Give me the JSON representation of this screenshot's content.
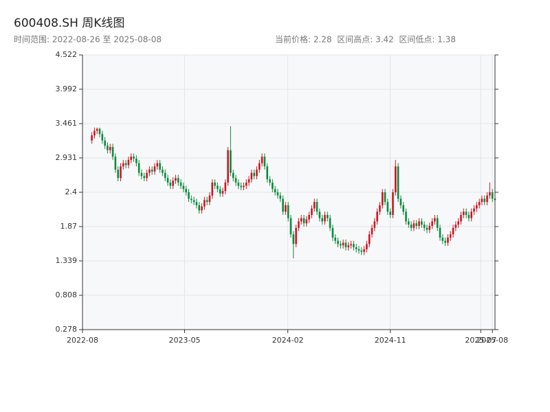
{
  "chart_data": {
    "type": "candlestick",
    "title": "600408.SH 周K线图",
    "subtitle": "时间范围: 2022-08-26 至 2025-08-08",
    "stats": "当前价格: 2.28  区间高点: 3.42  区间低点: 1.38",
    "up_color": "#d0131f",
    "down_color": "#0a8a3a",
    "x": [
      "2022-08-26",
      "2022-09-02",
      "2022-09-09",
      "2022-09-16",
      "2022-09-23",
      "2022-09-30",
      "2022-10-07",
      "2022-10-14",
      "2022-10-21",
      "2022-10-28",
      "2022-11-04",
      "2022-11-11",
      "2022-11-18",
      "2022-11-25",
      "2022-12-02",
      "2022-12-09",
      "2022-12-16",
      "2022-12-23",
      "2022-12-30",
      "2023-01-06",
      "2023-01-13",
      "2023-01-20",
      "2023-01-27",
      "2023-02-03",
      "2023-02-10",
      "2023-02-17",
      "2023-02-24",
      "2023-03-03",
      "2023-03-10",
      "2023-03-17",
      "2023-03-24",
      "2023-03-31",
      "2023-04-07",
      "2023-04-14",
      "2023-04-21",
      "2023-04-28",
      "2023-05-05",
      "2023-05-12",
      "2023-05-19",
      "2023-05-26",
      "2023-06-02",
      "2023-06-09",
      "2023-06-16",
      "2023-06-23",
      "2023-06-30",
      "2023-07-07",
      "2023-07-14",
      "2023-07-21",
      "2023-07-28",
      "2023-08-04",
      "2023-08-11",
      "2023-08-18",
      "2023-08-25",
      "2023-09-01",
      "2023-09-08",
      "2023-09-15",
      "2023-09-22",
      "2023-09-29",
      "2023-10-06",
      "2023-10-13",
      "2023-10-20",
      "2023-10-27",
      "2023-11-03",
      "2023-11-10",
      "2023-11-17",
      "2023-11-24",
      "2023-12-01",
      "2023-12-08",
      "2023-12-15",
      "2023-12-22",
      "2023-12-29",
      "2024-01-05",
      "2024-01-12",
      "2024-01-19",
      "2024-01-26",
      "2024-02-02",
      "2024-02-09",
      "2024-02-16",
      "2024-02-23",
      "2024-03-01",
      "2024-03-08",
      "2024-03-15",
      "2024-03-22",
      "2024-03-29",
      "2024-04-05",
      "2024-04-12",
      "2024-04-19",
      "2024-04-26",
      "2024-05-03",
      "2024-05-10",
      "2024-05-17",
      "2024-05-24",
      "2024-05-31",
      "2024-06-07",
      "2024-06-14",
      "2024-06-21",
      "2024-06-28",
      "2024-07-05",
      "2024-07-12",
      "2024-07-19",
      "2024-07-26",
      "2024-08-02",
      "2024-08-09",
      "2024-08-16",
      "2024-08-23",
      "2024-08-30",
      "2024-09-06",
      "2024-09-13",
      "2024-09-20",
      "2024-09-27",
      "2024-10-04",
      "2024-10-11",
      "2024-10-18",
      "2024-10-25",
      "2024-11-01",
      "2024-11-08",
      "2024-11-15",
      "2024-11-22",
      "2024-11-29",
      "2024-12-06",
      "2024-12-13",
      "2024-12-20",
      "2024-12-27",
      "2025-01-03",
      "2025-01-10",
      "2025-01-17",
      "2025-01-24",
      "2025-01-31",
      "2025-02-07",
      "2025-02-14",
      "2025-02-21",
      "2025-02-28",
      "2025-03-07",
      "2025-03-14",
      "2025-03-21",
      "2025-03-28",
      "2025-04-04",
      "2025-04-11",
      "2025-04-18",
      "2025-04-25",
      "2025-05-02",
      "2025-05-09",
      "2025-05-16",
      "2025-05-23",
      "2025-05-30",
      "2025-06-06",
      "2025-06-13",
      "2025-06-20",
      "2025-06-27",
      "2025-07-04",
      "2025-07-11",
      "2025-07-18",
      "2025-07-25",
      "2025-08-01",
      "2025-08-08"
    ],
    "open": [
      3.2,
      3.28,
      3.35,
      3.38,
      3.3,
      3.2,
      3.12,
      3.05,
      3.1,
      2.95,
      2.75,
      2.62,
      2.8,
      2.85,
      2.82,
      2.9,
      2.95,
      2.92,
      2.85,
      2.7,
      2.65,
      2.62,
      2.7,
      2.75,
      2.72,
      2.8,
      2.85,
      2.75,
      2.7,
      2.62,
      2.55,
      2.5,
      2.58,
      2.62,
      2.55,
      2.5,
      2.45,
      2.4,
      2.3,
      2.28,
      2.25,
      2.2,
      2.12,
      2.18,
      2.28,
      2.25,
      2.35,
      2.55,
      2.5,
      2.45,
      2.38,
      2.42,
      2.55,
      3.05,
      2.7,
      2.62,
      2.55,
      2.5,
      2.48,
      2.5,
      2.55,
      2.6,
      2.7,
      2.65,
      2.75,
      2.85,
      2.95,
      2.8,
      2.6,
      2.55,
      2.45,
      2.4,
      2.35,
      2.3,
      2.1,
      2.2,
      2.0,
      1.75,
      1.6,
      1.85,
      1.95,
      2.0,
      1.92,
      1.98,
      2.05,
      2.15,
      2.25,
      2.1,
      2.0,
      1.95,
      2.05,
      2.0,
      1.85,
      1.7,
      1.65,
      1.6,
      1.58,
      1.62,
      1.55,
      1.58,
      1.6,
      1.55,
      1.52,
      1.5,
      1.48,
      1.52,
      1.6,
      1.75,
      1.85,
      1.95,
      2.1,
      2.2,
      2.4,
      2.25,
      2.1,
      2.05,
      2.4,
      2.8,
      2.3,
      2.2,
      2.1,
      1.95,
      1.9,
      1.85,
      1.92,
      1.88,
      1.95,
      1.9,
      1.85,
      1.82,
      1.88,
      1.95,
      2.0,
      1.85,
      1.7,
      1.65,
      1.62,
      1.7,
      1.75,
      1.85,
      1.9,
      1.95,
      2.05,
      2.1,
      2.05,
      2.0,
      2.1,
      2.15,
      2.2,
      2.25,
      2.3,
      2.25,
      2.35,
      2.4,
      2.3
    ],
    "high": [
      3.33,
      3.4,
      3.4,
      3.4,
      3.35,
      3.25,
      3.17,
      3.15,
      3.15,
      3.0,
      2.8,
      2.85,
      2.9,
      2.9,
      2.95,
      3.0,
      3.0,
      2.97,
      2.9,
      2.75,
      2.7,
      2.75,
      2.8,
      2.8,
      2.85,
      2.9,
      2.9,
      2.8,
      2.75,
      2.67,
      2.6,
      2.63,
      2.67,
      2.67,
      2.6,
      2.55,
      2.5,
      2.45,
      2.35,
      2.33,
      2.3,
      2.25,
      2.23,
      2.33,
      2.33,
      2.4,
      2.6,
      2.6,
      2.55,
      2.5,
      2.47,
      2.6,
      3.1,
      3.42,
      2.75,
      2.67,
      2.6,
      2.55,
      2.55,
      2.6,
      2.65,
      2.75,
      2.75,
      2.8,
      2.9,
      3.0,
      3.0,
      2.85,
      2.65,
      2.6,
      2.5,
      2.45,
      2.4,
      2.35,
      2.25,
      2.25,
      2.05,
      1.8,
      1.9,
      2.0,
      2.05,
      2.05,
      2.03,
      2.1,
      2.2,
      2.3,
      2.3,
      2.15,
      2.05,
      2.1,
      2.1,
      2.05,
      1.9,
      1.75,
      1.7,
      1.65,
      1.67,
      1.67,
      1.63,
      1.65,
      1.65,
      1.6,
      1.57,
      1.55,
      1.57,
      1.65,
      1.8,
      1.9,
      2.0,
      2.15,
      2.25,
      2.45,
      2.45,
      2.3,
      2.15,
      2.45,
      2.9,
      2.85,
      2.35,
      2.25,
      2.15,
      2.0,
      1.95,
      1.97,
      1.97,
      2.0,
      2.0,
      1.95,
      1.9,
      1.93,
      2.0,
      2.05,
      2.05,
      1.9,
      1.75,
      1.7,
      1.75,
      1.8,
      1.9,
      1.95,
      2.0,
      2.1,
      2.15,
      2.15,
      2.1,
      2.15,
      2.2,
      2.25,
      2.3,
      2.35,
      2.35,
      2.4,
      2.55,
      2.45,
      2.35
    ],
    "low": [
      3.15,
      3.23,
      3.3,
      3.25,
      3.15,
      3.07,
      3.0,
      3.0,
      2.9,
      2.7,
      2.57,
      2.57,
      2.75,
      2.77,
      2.77,
      2.85,
      2.87,
      2.8,
      2.65,
      2.6,
      2.57,
      2.57,
      2.65,
      2.67,
      2.67,
      2.75,
      2.7,
      2.65,
      2.57,
      2.5,
      2.45,
      2.45,
      2.53,
      2.5,
      2.45,
      2.4,
      2.35,
      2.25,
      2.23,
      2.2,
      2.15,
      2.07,
      2.07,
      2.13,
      2.2,
      2.2,
      2.3,
      2.45,
      2.4,
      2.33,
      2.33,
      2.37,
      2.5,
      2.65,
      2.57,
      2.5,
      2.45,
      2.43,
      2.43,
      2.45,
      2.5,
      2.55,
      2.6,
      2.6,
      2.7,
      2.8,
      2.75,
      2.55,
      2.5,
      2.4,
      2.35,
      2.3,
      2.25,
      2.05,
      2.05,
      1.95,
      1.7,
      1.38,
      1.55,
      1.8,
      1.9,
      1.87,
      1.87,
      1.93,
      2.0,
      2.1,
      2.05,
      1.95,
      1.9,
      1.9,
      1.95,
      1.8,
      1.65,
      1.6,
      1.55,
      1.53,
      1.53,
      1.5,
      1.5,
      1.53,
      1.5,
      1.47,
      1.45,
      1.43,
      1.43,
      1.47,
      1.55,
      1.7,
      1.8,
      1.9,
      2.05,
      2.15,
      2.2,
      2.05,
      2.0,
      2.0,
      2.35,
      2.25,
      2.15,
      2.05,
      1.9,
      1.85,
      1.8,
      1.8,
      1.83,
      1.83,
      1.85,
      1.8,
      1.77,
      1.77,
      1.83,
      1.9,
      1.8,
      1.65,
      1.6,
      1.57,
      1.57,
      1.65,
      1.7,
      1.8,
      1.85,
      1.9,
      2.0,
      2.0,
      1.95,
      1.95,
      2.05,
      2.1,
      2.15,
      2.2,
      2.2,
      2.2,
      2.3,
      2.25,
      2.23
    ],
    "close": [
      3.28,
      3.35,
      3.38,
      3.3,
      3.2,
      3.12,
      3.05,
      3.1,
      2.95,
      2.75,
      2.62,
      2.8,
      2.85,
      2.82,
      2.9,
      2.95,
      2.92,
      2.85,
      2.7,
      2.65,
      2.62,
      2.7,
      2.75,
      2.72,
      2.8,
      2.85,
      2.75,
      2.7,
      2.62,
      2.55,
      2.5,
      2.58,
      2.62,
      2.55,
      2.5,
      2.45,
      2.4,
      2.3,
      2.28,
      2.25,
      2.2,
      2.12,
      2.18,
      2.28,
      2.25,
      2.35,
      2.55,
      2.5,
      2.45,
      2.38,
      2.42,
      2.55,
      3.05,
      2.7,
      2.62,
      2.55,
      2.5,
      2.48,
      2.5,
      2.55,
      2.6,
      2.7,
      2.65,
      2.75,
      2.85,
      2.95,
      2.8,
      2.6,
      2.55,
      2.45,
      2.4,
      2.35,
      2.3,
      2.1,
      2.2,
      2.0,
      1.75,
      1.6,
      1.85,
      1.95,
      2.0,
      1.92,
      1.98,
      2.05,
      2.15,
      2.25,
      2.1,
      2.0,
      1.95,
      2.05,
      2.0,
      1.85,
      1.7,
      1.65,
      1.6,
      1.58,
      1.62,
      1.55,
      1.58,
      1.6,
      1.55,
      1.52,
      1.5,
      1.48,
      1.52,
      1.6,
      1.75,
      1.85,
      1.95,
      2.1,
      2.2,
      2.4,
      2.25,
      2.1,
      2.05,
      2.4,
      2.8,
      2.3,
      2.2,
      2.1,
      1.95,
      1.9,
      1.85,
      1.92,
      1.88,
      1.95,
      1.9,
      1.85,
      1.82,
      1.88,
      1.95,
      2.0,
      1.85,
      1.7,
      1.65,
      1.62,
      1.7,
      1.75,
      1.85,
      1.9,
      1.95,
      2.05,
      2.1,
      2.05,
      2.0,
      2.1,
      2.15,
      2.2,
      2.25,
      2.3,
      2.25,
      2.35,
      2.4,
      2.3,
      2.28
    ],
    "xlim": [
      "2022-08-01",
      "2025-08-08"
    ],
    "xticks": [
      "2022-08",
      "2023-05",
      "2024-02",
      "2024-11",
      "2025-07",
      "2025-08"
    ],
    "ylim": [
      0.278,
      4.522
    ],
    "yticks": [
      0.278,
      0.808,
      1.339,
      1.87,
      2.4,
      2.931,
      3.461,
      3.992,
      4.522
    ],
    "grid": true
  }
}
